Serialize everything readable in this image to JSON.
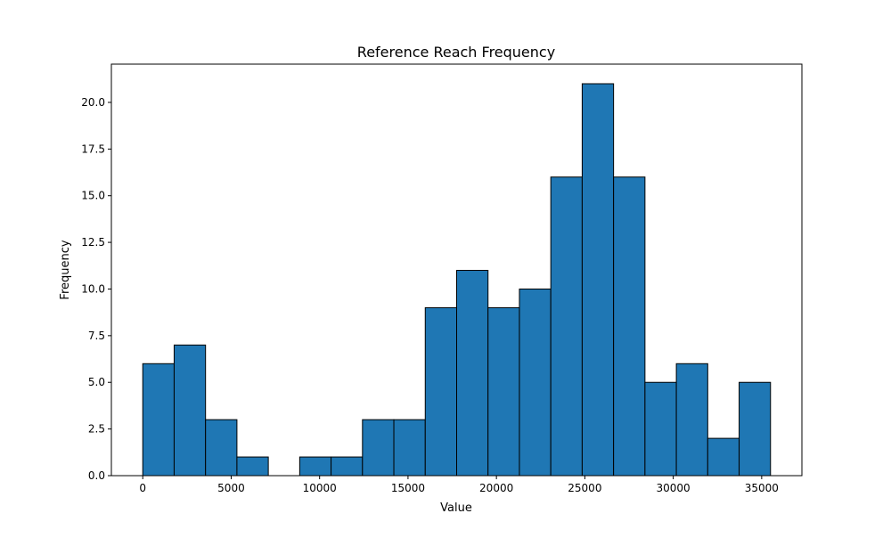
{
  "colors": {
    "bar_fill": "#1f77b4",
    "bar_edge": "#000000",
    "axes": "#000000",
    "background": "#ffffff"
  },
  "chart_data": {
    "type": "bar",
    "subtype": "histogram",
    "title": "Reference Reach Frequency",
    "xlabel": "Value",
    "ylabel": "Frequency",
    "bin_edges": [
      0,
      1775,
      3550,
      5325,
      7100,
      8875,
      10650,
      12425,
      14200,
      15975,
      17750,
      19525,
      21300,
      23075,
      24850,
      26625,
      28400,
      30175,
      31950,
      33725,
      35500
    ],
    "values": [
      6,
      7,
      3,
      1,
      0,
      1,
      1,
      3,
      3,
      9,
      11,
      9,
      10,
      16,
      21,
      16,
      5,
      6,
      2,
      5
    ],
    "xlim": [
      -1775,
      37275
    ],
    "ylim": [
      0,
      22.05
    ],
    "x_ticks": [
      0,
      5000,
      10000,
      15000,
      20000,
      25000,
      30000,
      35000
    ],
    "x_tick_labels": [
      "0",
      "5000",
      "10000",
      "15000",
      "20000",
      "25000",
      "30000",
      "35000"
    ],
    "y_ticks": [
      0,
      2.5,
      5,
      7.5,
      10,
      12.5,
      15,
      17.5,
      20
    ],
    "y_tick_labels": [
      "0.0",
      "2.5",
      "5.0",
      "7.5",
      "10.0",
      "12.5",
      "15.0",
      "17.5",
      "20.0"
    ],
    "grid": false,
    "legend": "none"
  }
}
